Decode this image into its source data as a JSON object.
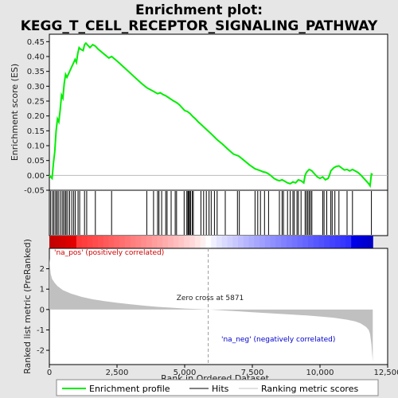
{
  "chart_data": {
    "type": "line",
    "title_line1": "Enrichment plot:",
    "title_line2": "KEGG_T_CELL_RECEPTOR_SIGNALING_PATHWAY",
    "ylabel_top": "Enrichment score (ES)",
    "ylabel_bottom": "Ranked list metric (PreRanked)",
    "xlabel": "Rank in Ordered Dataset",
    "xlim": [
      0,
      12500
    ],
    "es_ylim": [
      -0.05,
      0.475
    ],
    "metric_ylim": [
      -2.7,
      3.0
    ],
    "xticks": [
      0,
      2500,
      5000,
      7500,
      10000,
      12500
    ],
    "xtick_labels": [
      "0",
      "2,500",
      "5,000",
      "7,500",
      "10,000",
      "12,500"
    ],
    "es_yticks": [
      -0.05,
      0.0,
      0.05,
      0.1,
      0.15,
      0.2,
      0.25,
      0.3,
      0.35,
      0.4,
      0.45
    ],
    "es_ytick_labels": [
      "-0.05",
      "0.00",
      "0.05",
      "0.10",
      "0.15",
      "0.20",
      "0.25",
      "0.30",
      "0.35",
      "0.40",
      "0.45"
    ],
    "metric_yticks": [
      -2,
      -1,
      0,
      1,
      2
    ],
    "metric_ytick_labels": [
      "-2",
      "-1",
      "0",
      "1",
      "2"
    ],
    "series": [
      {
        "name": "Enrichment profile",
        "color": "#00ee00",
        "x": [
          0,
          100,
          150,
          200,
          250,
          300,
          350,
          400,
          450,
          500,
          550,
          600,
          650,
          700,
          800,
          850,
          900,
          950,
          1000,
          1050,
          1100,
          1150,
          1250,
          1300,
          1350,
          1400,
          1500,
          1600,
          1700,
          1800,
          2000,
          2200,
          2300,
          2500,
          2800,
          3100,
          3400,
          3600,
          3800,
          3900,
          4000,
          4100,
          4200,
          4300,
          4400,
          4500,
          4600,
          4700,
          4800,
          4900,
          5000,
          5100,
          5200,
          5300,
          5400,
          5500,
          5600,
          5800,
          6000,
          6200,
          6400,
          6600,
          6800,
          7000,
          7200,
          7400,
          7600,
          7800,
          7900,
          8000,
          8100,
          8200,
          8300,
          8400,
          8500,
          8600,
          8700,
          8800,
          8900,
          9000,
          9100,
          9200,
          9300,
          9400,
          9450,
          9500,
          9550,
          9600,
          9650,
          9700,
          9800,
          9900,
          10000,
          10100,
          10200,
          10300,
          10350,
          10400,
          10450,
          10500,
          10600,
          10700,
          10800,
          10900,
          11000,
          11100,
          11200,
          11300,
          11400,
          11500,
          11600,
          11700,
          11800,
          11850,
          11900,
          11950
        ],
        "y": [
          0.0,
          -0.01,
          0.04,
          0.08,
          0.15,
          0.19,
          0.18,
          0.22,
          0.27,
          0.26,
          0.31,
          0.34,
          0.33,
          0.34,
          0.36,
          0.37,
          0.38,
          0.39,
          0.38,
          0.41,
          0.43,
          0.425,
          0.42,
          0.44,
          0.445,
          0.44,
          0.43,
          0.44,
          0.435,
          0.425,
          0.41,
          0.395,
          0.4,
          0.385,
          0.36,
          0.335,
          0.31,
          0.295,
          0.285,
          0.28,
          0.275,
          0.278,
          0.272,
          0.268,
          0.262,
          0.256,
          0.25,
          0.245,
          0.238,
          0.228,
          0.218,
          0.215,
          0.208,
          0.198,
          0.19,
          0.18,
          0.172,
          0.155,
          0.138,
          0.12,
          0.105,
          0.088,
          0.072,
          0.065,
          0.05,
          0.035,
          0.022,
          0.016,
          0.012,
          0.01,
          0.005,
          -0.002,
          -0.01,
          -0.015,
          -0.018,
          -0.015,
          -0.02,
          -0.025,
          -0.028,
          -0.022,
          -0.025,
          -0.015,
          -0.018,
          -0.025,
          0.0,
          0.01,
          0.015,
          0.02,
          0.018,
          0.015,
          0.005,
          -0.005,
          -0.01,
          -0.005,
          -0.015,
          -0.01,
          0.0,
          0.015,
          0.02,
          0.025,
          0.03,
          0.032,
          0.025,
          0.018,
          0.02,
          0.015,
          0.02,
          0.015,
          0.01,
          0.002,
          -0.008,
          -0.018,
          -0.028,
          -0.035,
          0.005,
          0.003
        ]
      }
    ],
    "hits": [
      50,
      120,
      170,
      230,
      280,
      330,
      400,
      470,
      520,
      580,
      620,
      680,
      750,
      830,
      900,
      960,
      1060,
      1120,
      1300,
      1380,
      1700,
      2300,
      3600,
      3850,
      4000,
      4050,
      4150,
      4300,
      4350,
      4500,
      4650,
      4700,
      4980,
      5080,
      5120,
      5150,
      5180,
      5220,
      5280,
      5320,
      5600,
      5700,
      5800,
      5900,
      5980,
      6100,
      6200,
      6500,
      6950,
      7020,
      7600,
      7700,
      7800,
      7950,
      8100,
      8500,
      8600,
      8650,
      8800,
      8900,
      9000,
      9050,
      9150,
      9200,
      9300,
      9450,
      9500,
      9550,
      9600,
      9650,
      9700,
      10100,
      10150,
      10250,
      10400,
      10450,
      10550,
      10700,
      11000,
      11200,
      11900
    ],
    "zero_cross_label": "Zero cross at 5871",
    "zero_cross": 5871,
    "pos_label": "'na_pos' (positively correlated)",
    "neg_label": "'na_neg' (negatively correlated)",
    "metric_curve": {
      "x": [
        0,
        50,
        100,
        200,
        300,
        500,
        800,
        1200,
        1600,
        2000,
        2500,
        3000,
        3500,
        4000,
        4500,
        5000,
        5500,
        5871,
        6500,
        7000,
        7500,
        8000,
        8500,
        9000,
        9500,
        10000,
        10500,
        11000,
        11300,
        11500,
        11700,
        11800,
        11850,
        11900,
        11950
      ],
      "y": [
        2.5,
        1.75,
        1.5,
        1.3,
        1.15,
        0.95,
        0.78,
        0.62,
        0.5,
        0.42,
        0.33,
        0.26,
        0.19,
        0.13,
        0.09,
        0.05,
        0.02,
        0.0,
        -0.05,
        -0.09,
        -0.13,
        -0.17,
        -0.21,
        -0.25,
        -0.29,
        -0.34,
        -0.4,
        -0.5,
        -0.58,
        -0.68,
        -0.85,
        -1.0,
        -1.2,
        -1.7,
        -2.55
      ]
    },
    "legend": [
      "Enrichment profile",
      "Hits",
      "Ranking metric scores"
    ],
    "colors": {
      "es_line": "#00ee00",
      "hit_line": "#000000",
      "metric_fill": "#c0c0c0",
      "zero_cross": "#999999",
      "pos_text": "#cc0000",
      "neg_text": "#0000cc",
      "plot_bg": "#ffffff",
      "page_bg": "#e6e6e6"
    }
  }
}
